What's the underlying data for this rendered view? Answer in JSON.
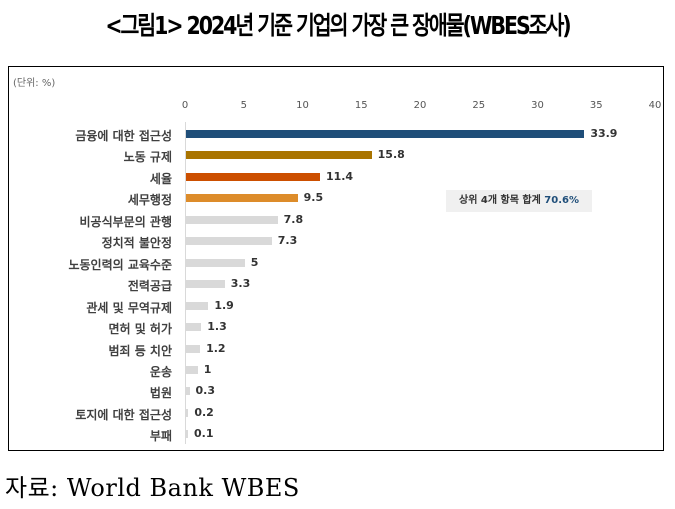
{
  "title": "<그림1> 2024년 기준 기업의 가장 큰 장애물(WBES조사)",
  "unit_label": "(단위: %)",
  "annotation": {
    "text": "상위 4개 항목 합계",
    "value": "70.6%"
  },
  "source": "자료: World Bank WBES",
  "chart_data": {
    "type": "bar",
    "orientation": "horizontal",
    "title": "2024년 기준 기업의 가장 큰 장애물(WBES조사)",
    "xlabel": "",
    "ylabel": "",
    "unit": "%",
    "xlim": [
      0,
      40
    ],
    "ticks": [
      0,
      5,
      10,
      15,
      20,
      25,
      30,
      35,
      40
    ],
    "grid": false,
    "categories": [
      "금융에 대한 접근성",
      "노동 규제",
      "세율",
      "세무행정",
      "비공식부문의 관행",
      "정치적 불안정",
      "노동인력의 교육수준",
      "전력공급",
      "관세 및 무역규제",
      "면허 및 허가",
      "범죄 등 치안",
      "운송",
      "법원",
      "토지에 대한 접근성",
      "부패"
    ],
    "values": [
      33.9,
      15.8,
      11.4,
      9.5,
      7.8,
      7.3,
      5,
      3.3,
      1.9,
      1.3,
      1.2,
      1,
      0.3,
      0.2,
      0.1
    ],
    "value_labels": [
      "33.9",
      "15.8",
      "11.4",
      "9.5",
      "7.8",
      "7.3",
      "5",
      "3.3",
      "1.9",
      "1.3",
      "1.2",
      "1",
      "0.3",
      "0.2",
      "0.1"
    ],
    "colors": [
      "#1f4e79",
      "#a97400",
      "#cc4f00",
      "#dd8c2a",
      "#d9d9d9",
      "#d9d9d9",
      "#d9d9d9",
      "#d9d9d9",
      "#d9d9d9",
      "#d9d9d9",
      "#d9d9d9",
      "#d9d9d9",
      "#d9d9d9",
      "#d9d9d9",
      "#d9d9d9"
    ],
    "annotations": [
      "상위 4개 항목 합계 70.6%"
    ]
  }
}
